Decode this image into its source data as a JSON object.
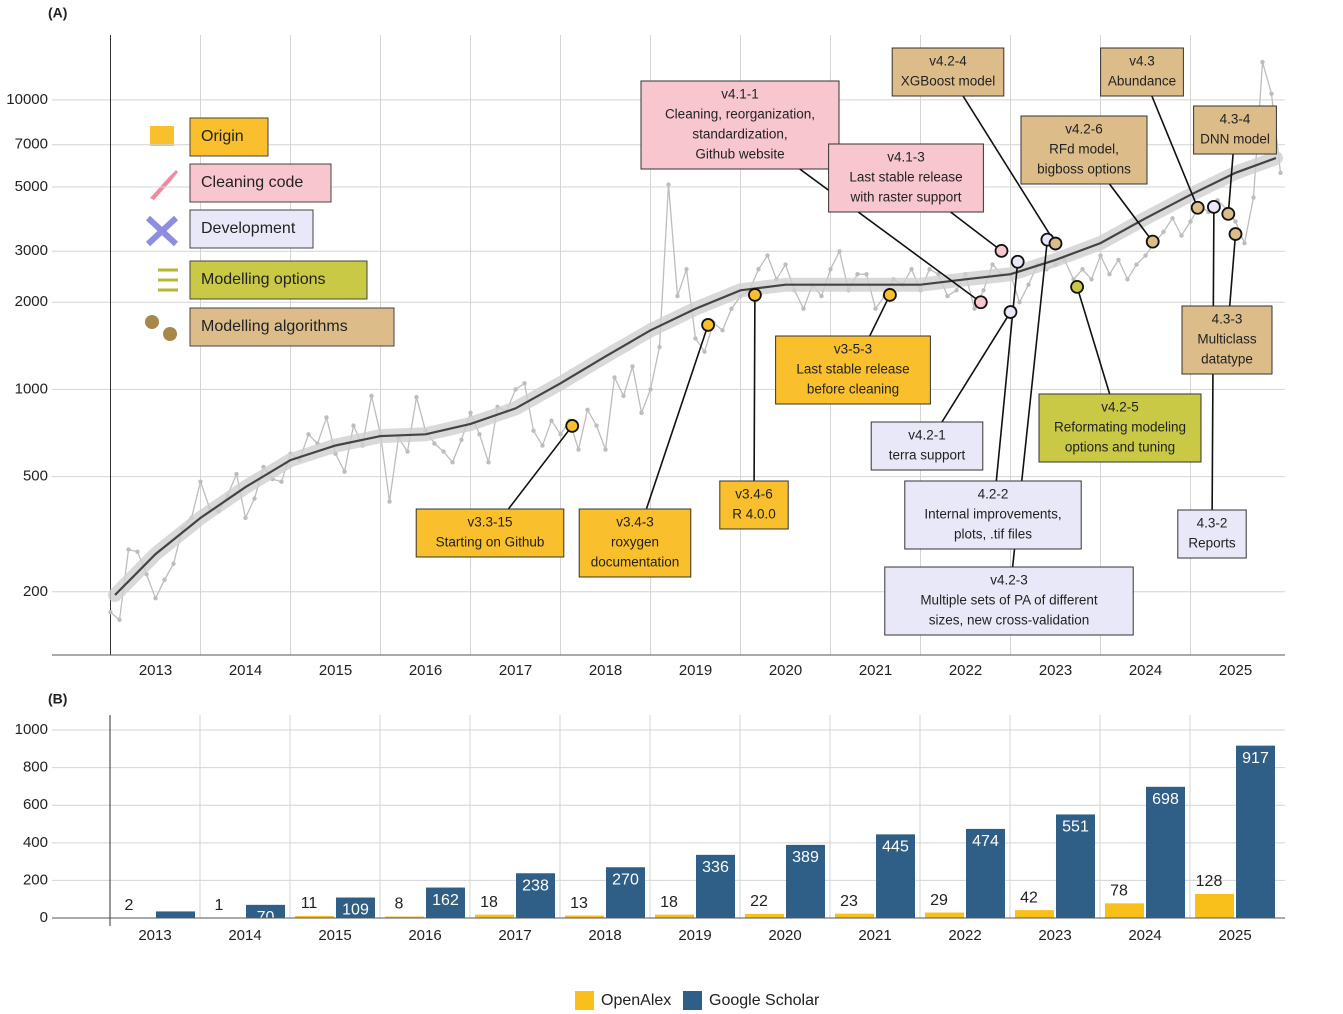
{
  "chart_data": [
    {
      "type": "line",
      "panel": "(A)",
      "log": true,
      "xlim": [
        2012.35,
        2026.05
      ],
      "ylim": [
        121,
        16750
      ],
      "xticks": [
        {
          "value": 2013.5,
          "label": "2013"
        },
        {
          "value": 2014.5,
          "label": "2014"
        },
        {
          "value": 2015.5,
          "label": "2015"
        },
        {
          "value": 2016.5,
          "label": "2016"
        },
        {
          "value": 2017.5,
          "label": "2017"
        },
        {
          "value": 2018.5,
          "label": "2018"
        },
        {
          "value": 2019.5,
          "label": "2019"
        },
        {
          "value": 2020.5,
          "label": "2020"
        },
        {
          "value": 2021.5,
          "label": "2021"
        },
        {
          "value": 2022.5,
          "label": "2022"
        },
        {
          "value": 2023.5,
          "label": "2023"
        },
        {
          "value": 2024.5,
          "label": "2024"
        },
        {
          "value": 2025.5,
          "label": "2025"
        }
      ],
      "xgrid": [
        2013,
        2014,
        2015,
        2016,
        2017,
        2018,
        2019,
        2020,
        2021,
        2022,
        2023,
        2024,
        2025
      ],
      "yticks": [
        200,
        500,
        1000,
        2000,
        3000,
        5000,
        7000,
        10000
      ],
      "series": [
        {
          "color": "#bdbdbd",
          "x": [
            2013.0,
            2013.1,
            2013.2,
            2013.3,
            2013.4,
            2013.5,
            2013.6,
            2013.7,
            2013.8,
            2013.9,
            2014.0,
            2014.1,
            2014.2,
            2014.3,
            2014.4,
            2014.5,
            2014.6,
            2014.7,
            2014.8,
            2014.9,
            2015.0,
            2015.1,
            2015.2,
            2015.3,
            2015.4,
            2015.5,
            2015.6,
            2015.7,
            2015.8,
            2015.9,
            2016.0,
            2016.1,
            2016.2,
            2016.3,
            2016.4,
            2016.5,
            2016.6,
            2016.7,
            2016.8,
            2016.9,
            2017.0,
            2017.1,
            2017.2,
            2017.3,
            2017.4,
            2017.5,
            2017.6,
            2017.7,
            2017.8,
            2017.9,
            2018.0,
            2018.1,
            2018.2,
            2018.3,
            2018.4,
            2018.5,
            2018.6,
            2018.7,
            2018.8,
            2018.9,
            2019.0,
            2019.1,
            2019.2,
            2019.3,
            2019.4,
            2019.5,
            2019.6,
            2019.7,
            2019.8,
            2019.9,
            2020.0,
            2020.1,
            2020.2,
            2020.3,
            2020.4,
            2020.5,
            2020.6,
            2020.7,
            2020.8,
            2020.9,
            2021.0,
            2021.1,
            2021.2,
            2021.3,
            2021.4,
            2021.5,
            2021.6,
            2021.7,
            2021.8,
            2021.9,
            2022.0,
            2022.1,
            2022.2,
            2022.3,
            2022.4,
            2022.5,
            2022.6,
            2022.7,
            2022.8,
            2022.9,
            2023.0,
            2023.1,
            2023.2,
            2023.3,
            2023.4,
            2023.5,
            2023.6,
            2023.7,
            2023.8,
            2023.9,
            2024.0,
            2024.1,
            2024.2,
            2024.3,
            2024.4,
            2024.5,
            2024.6,
            2024.7,
            2024.8,
            2024.9,
            2025.0,
            2025.1,
            2025.2,
            2025.3,
            2025.4,
            2025.5,
            2025.6,
            2025.7,
            2025.8,
            2025.9,
            2026.0
          ],
          "values": [
            170,
            160,
            280,
            275,
            230,
            190,
            220,
            250,
            330,
            360,
            480,
            390,
            380,
            430,
            510,
            360,
            420,
            540,
            490,
            480,
            600,
            570,
            700,
            650,
            800,
            600,
            520,
            750,
            640,
            950,
            700,
            410,
            680,
            610,
            940,
            720,
            650,
            610,
            560,
            670,
            830,
            700,
            560,
            870,
            840,
            1000,
            1050,
            720,
            640,
            780,
            700,
            780,
            620,
            850,
            750,
            620,
            1100,
            950,
            1200,
            830,
            1000,
            1400,
            5100,
            2100,
            2600,
            1500,
            1350,
            1700,
            1600,
            1900,
            2100,
            2200,
            2600,
            2900,
            2400,
            2700,
            2200,
            1900,
            2300,
            2100,
            2600,
            3000,
            2200,
            2500,
            2500,
            1900,
            2100,
            2400,
            2300,
            2600,
            2200,
            2600,
            2500,
            2100,
            2200,
            2500,
            1900,
            2200,
            2700,
            2500,
            2500,
            2000,
            2300,
            2700,
            2600,
            2700,
            2800,
            2400,
            2600,
            2400,
            2900,
            2500,
            2800,
            2400,
            2700,
            2900,
            3200,
            3500,
            3900,
            3400,
            3800,
            4300,
            4100,
            4500,
            4200,
            3800,
            3200,
            4600,
            13500,
            10500,
            5600
          ]
        },
        {
          "color": "#444444",
          "band_color": "#cfcfcf",
          "x": [
            2013.05,
            2013.5,
            2014,
            2014.5,
            2015,
            2015.5,
            2016,
            2016.5,
            2017,
            2017.5,
            2018,
            2018.5,
            2019,
            2019.5,
            2020,
            2020.5,
            2021,
            2021.5,
            2022,
            2022.5,
            2023,
            2023.5,
            2024,
            2024.5,
            2025,
            2025.5,
            2025.95
          ],
          "values": [
            195,
            270,
            360,
            460,
            570,
            640,
            690,
            700,
            760,
            860,
            1050,
            1300,
            1600,
            1900,
            2200,
            2300,
            2300,
            2300,
            2300,
            2400,
            2500,
            2800,
            3200,
            3900,
            4700,
            5600,
            6300
          ]
        }
      ],
      "groups": [
        {
          "name": "Origin",
          "color": "#f9bf2c"
        },
        {
          "name": "Cleaning code",
          "color": "#f8c6cf"
        },
        {
          "name": "Development",
          "color": "#e8e8f8"
        },
        {
          "name": "Modelling options",
          "color": "#c9c946"
        },
        {
          "name": "Modelling algorithms",
          "color": "#dcbd8a"
        }
      ],
      "milestones": [
        {
          "group": "Origin",
          "x": 2018.13,
          "y": 748,
          "lines": [
            "v3.3-15",
            "Starting on Github"
          ]
        },
        {
          "group": "Origin",
          "x": 2019.64,
          "y": 1670,
          "lines": [
            "v3.4-3",
            "roxygen",
            "documentation"
          ]
        },
        {
          "group": "Origin",
          "x": 2020.16,
          "y": 2120,
          "lines": [
            "v3.4-6",
            "R 4.0.0"
          ]
        },
        {
          "group": "Origin",
          "x": 2021.66,
          "y": 2120,
          "lines": [
            "v3-5-3",
            "Last stable release",
            "before cleaning"
          ]
        },
        {
          "group": "Cleaning code",
          "x": 2022.67,
          "y": 2000,
          "lines": [
            "v4.1-1",
            "Cleaning, reorganization,",
            "standardization,",
            "Github website"
          ]
        },
        {
          "group": "Cleaning code",
          "x": 2022.9,
          "y": 3010,
          "lines": [
            "v4.1-3",
            "Last stable release",
            "with raster support"
          ]
        },
        {
          "group": "Development",
          "x": 2023.0,
          "y": 1850,
          "lines": [
            "v4.2-1",
            "terra support"
          ]
        },
        {
          "group": "Development",
          "x": 2023.08,
          "y": 2760,
          "lines": [
            "4.2-2",
            "Internal improvements,",
            "plots, .tif files"
          ]
        },
        {
          "group": "Development",
          "x": 2023.41,
          "y": 3290,
          "lines": [
            "v4.2-3",
            "Multiple sets of PA of different",
            "sizes, new cross-validation"
          ]
        },
        {
          "group": "Modelling algorithms",
          "x": 2023.5,
          "y": 3190,
          "lines": [
            "v4.2-4",
            "XGBoost model"
          ]
        },
        {
          "group": "Modelling options",
          "x": 2023.74,
          "y": 2260,
          "lines": [
            "v4.2-5",
            "Reformating modeling",
            "options and tuning"
          ]
        },
        {
          "group": "Modelling algorithms",
          "x": 2024.58,
          "y": 3240,
          "lines": [
            "v4.2-6",
            "RFd model,",
            "bigboss options"
          ]
        },
        {
          "group": "Modelling algorithms",
          "x": 2025.08,
          "y": 4240,
          "lines": [
            "v4.3",
            "Abundance"
          ]
        },
        {
          "group": "Development",
          "x": 2025.26,
          "y": 4270,
          "lines": [
            "4.3-2",
            "Reports"
          ]
        },
        {
          "group": "Modelling algorithms",
          "x": 2025.42,
          "y": 4040,
          "lines": [
            "4.3-4",
            "DNN model"
          ]
        },
        {
          "group": "Modelling algorithms",
          "x": 2025.5,
          "y": 3440,
          "lines": [
            "4.3-3",
            "Multiclass",
            "datatype"
          ]
        }
      ]
    },
    {
      "type": "bar",
      "panel": "(B)",
      "categories": [
        "2013",
        "2014",
        "2015",
        "2016",
        "2017",
        "2018",
        "2019",
        "2020",
        "2021",
        "2022",
        "2023",
        "2024",
        "2025"
      ],
      "ylim": [
        0,
        1080
      ],
      "yticks": [
        0,
        200,
        400,
        600,
        800,
        1000
      ],
      "legend": "bottom",
      "series": [
        {
          "name": "OpenAlex",
          "color": "#f9bf1a",
          "values": [
            2,
            1,
            11,
            8,
            18,
            13,
            18,
            22,
            23,
            29,
            42,
            78,
            128
          ]
        },
        {
          "name": "Google Scholar",
          "color": "#2f5f86",
          "values": [
            35,
            70,
            109,
            162,
            238,
            270,
            336,
            389,
            445,
            474,
            551,
            698,
            917
          ],
          "value_labels": [
            null,
            "70",
            "109",
            "162",
            "238",
            "270",
            "336",
            "389",
            "445",
            "474",
            "551",
            "698",
            "917"
          ]
        }
      ]
    }
  ]
}
